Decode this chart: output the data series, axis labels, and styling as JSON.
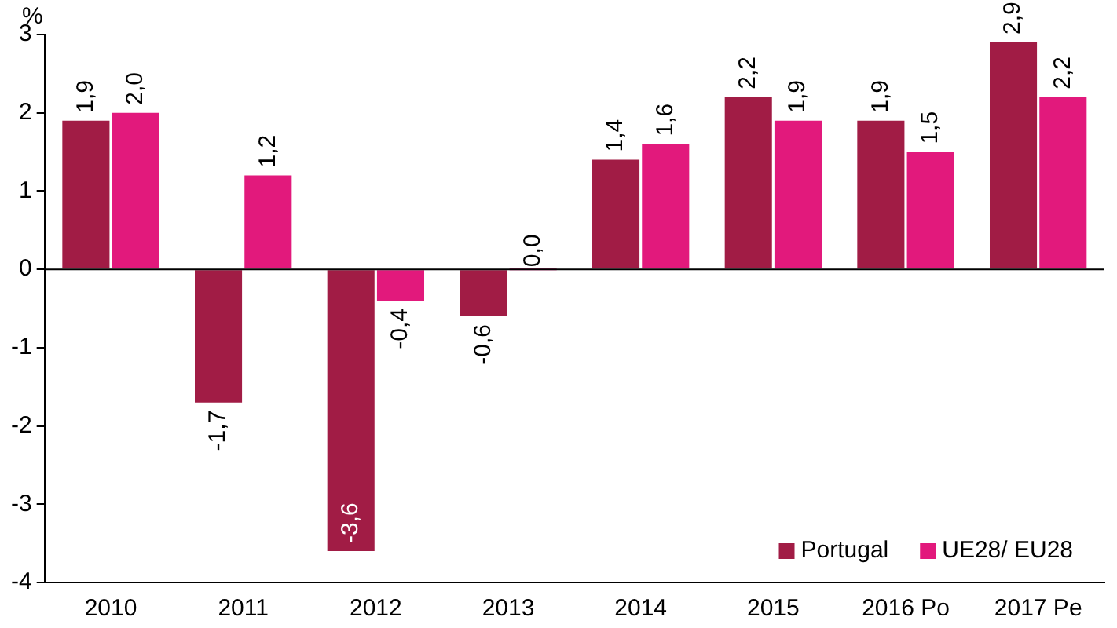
{
  "chart_data": {
    "type": "bar",
    "ylabel": "%",
    "categories": [
      "2010",
      "2011",
      "2012",
      "2013",
      "2014",
      "2015",
      "2016 Po",
      "2017 Pe"
    ],
    "series": [
      {
        "name": "Portugal",
        "color": "#a11c45",
        "values": [
          1.9,
          -1.7,
          -3.6,
          -0.6,
          1.4,
          2.2,
          1.9,
          2.9
        ],
        "value_labels": [
          "1,9",
          "-1,7",
          "-3,6",
          "-0,6",
          "1,4",
          "2,2",
          "1,9",
          "2,9"
        ]
      },
      {
        "name": "UE28/ EU28",
        "color": "#e2197c",
        "values": [
          2.0,
          1.2,
          -0.4,
          0.0,
          1.6,
          1.9,
          1.5,
          2.2
        ],
        "value_labels": [
          "2,0",
          "1,2",
          "-0,4",
          "0,0",
          "1,6",
          "1,9",
          "1,5",
          "2,2"
        ]
      }
    ],
    "ref_lines": [
      {
        "axis": "y",
        "value": 0,
        "color": "#000000"
      }
    ],
    "ylim": [
      -4,
      3
    ],
    "yticks": [
      -4,
      -3,
      -2,
      -1,
      0,
      1,
      2,
      3
    ],
    "grid": false,
    "legend": "bottom right"
  }
}
